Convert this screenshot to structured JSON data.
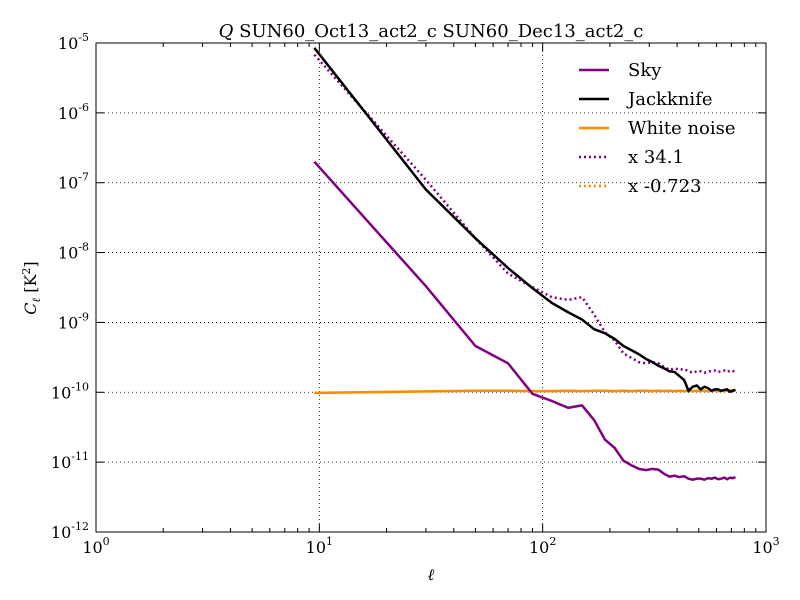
{
  "figure": {
    "title_math": "Q",
    "title_text": " SUN60_Oct13_act2_c SUN60_Dec13_act2_c",
    "xlabel": "ℓ",
    "ylabel_main": "C",
    "ylabel_sub": "ℓ",
    "ylabel_unit_open": " [K",
    "ylabel_unit_sup": "2",
    "ylabel_unit_close": "]"
  },
  "axes": {
    "x_ticks": [
      {
        "base": "10",
        "exp": "0",
        "value": 1
      },
      {
        "base": "10",
        "exp": "1",
        "value": 10
      },
      {
        "base": "10",
        "exp": "2",
        "value": 100
      },
      {
        "base": "10",
        "exp": "3",
        "value": 1000
      }
    ],
    "y_ticks": [
      {
        "base": "10",
        "exp": "-12",
        "value": 1e-12
      },
      {
        "base": "10",
        "exp": "-11",
        "value": 1e-11
      },
      {
        "base": "10",
        "exp": "-10",
        "value": 1e-10
      },
      {
        "base": "10",
        "exp": "-9",
        "value": 1e-09
      },
      {
        "base": "10",
        "exp": "-8",
        "value": 1e-08
      },
      {
        "base": "10",
        "exp": "-7",
        "value": 1e-07
      },
      {
        "base": "10",
        "exp": "-6",
        "value": 1e-06
      },
      {
        "base": "10",
        "exp": "-5",
        "value": 1e-05
      }
    ]
  },
  "legend": {
    "placement": "top-right",
    "entries": [
      {
        "label": "Sky",
        "color": "#800080",
        "style": "solid"
      },
      {
        "label": "Jackknife",
        "color": "#000000",
        "style": "solid"
      },
      {
        "label": "White noise",
        "color": "#ff8c00",
        "style": "solid"
      },
      {
        "label": "x 34.1",
        "color": "#800080",
        "style": "dotted"
      },
      {
        "label": "x -0.723",
        "color": "#ff8c00",
        "style": "dotted"
      }
    ]
  },
  "chart_data": {
    "type": "line",
    "xscale": "log",
    "yscale": "log",
    "xlim": [
      1,
      1000
    ],
    "ylim": [
      1e-12,
      1e-05
    ],
    "grid": true,
    "legend_placement": "top-right",
    "series": [
      {
        "name": "Sky",
        "color": "#800080",
        "style": "solid",
        "x": [
          9.5,
          30,
          50,
          70,
          90,
          110,
          130,
          150,
          170,
          190,
          210,
          230,
          250,
          270,
          290,
          310,
          330,
          350,
          370,
          390,
          410,
          430,
          450,
          470,
          490,
          510,
          530,
          550,
          570,
          590,
          610,
          630,
          650,
          670,
          690,
          710,
          730
        ],
        "y": [
          2e-07,
          3.3e-09,
          4.6e-10,
          2.6e-10,
          9.5e-11,
          7.5e-11,
          6e-11,
          6.5e-11,
          4e-11,
          2.1e-11,
          1.6e-11,
          1.05e-11,
          9e-12,
          8e-12,
          7.7e-12,
          8e-12,
          7.8e-12,
          6.8e-12,
          6.2e-12,
          6.4e-12,
          6.1e-12,
          6.3e-12,
          5.8e-12,
          5.6e-12,
          5.8e-12,
          5.8e-12,
          5.6e-12,
          5.9e-12,
          5.8e-12,
          6e-12,
          5.7e-12,
          5.8e-12,
          6e-12,
          5.7e-12,
          6e-12,
          5.9e-12,
          6.1e-12
        ]
      },
      {
        "name": "Jackknife",
        "color": "#000000",
        "style": "solid",
        "x": [
          9.5,
          30,
          50,
          70,
          90,
          110,
          130,
          150,
          170,
          190,
          210,
          230,
          250,
          270,
          290,
          310,
          330,
          350,
          370,
          390,
          410,
          430,
          450,
          470,
          490,
          510,
          530,
          550,
          570,
          590,
          610,
          630,
          650,
          670,
          690,
          710,
          730
        ],
        "y": [
          8.5e-06,
          8e-08,
          1.6e-08,
          6e-09,
          3.1e-09,
          1.9e-09,
          1.4e-09,
          1.1e-09,
          8e-10,
          7e-10,
          5.8e-10,
          4.6e-10,
          4e-10,
          3.5e-10,
          3e-10,
          2.7e-10,
          2.4e-10,
          2.2e-10,
          2e-10,
          1.95e-10,
          1.7e-10,
          1.5e-10,
          1.05e-10,
          1.2e-10,
          1.25e-10,
          1.1e-10,
          1.2e-10,
          1.15e-10,
          1.05e-10,
          1.1e-10,
          1.1e-10,
          1.05e-10,
          1.08e-10,
          1.1e-10,
          1.02e-10,
          1.05e-10,
          1.08e-10
        ]
      },
      {
        "name": "White noise",
        "color": "#ff8c00",
        "style": "solid",
        "x": [
          9.5,
          30,
          50,
          70,
          90,
          110,
          130,
          150,
          170,
          190,
          210,
          230,
          250,
          270,
          290,
          310,
          330,
          350,
          370,
          390,
          410,
          430,
          450,
          470,
          490,
          510,
          530,
          550,
          570,
          590,
          610,
          630,
          650,
          670,
          690,
          710,
          730
        ],
        "y": [
          9.8e-11,
          1.03e-10,
          1.05e-10,
          1.05e-10,
          1.04e-10,
          1.04e-10,
          1.05e-10,
          1.04e-10,
          1.05e-10,
          1.05e-10,
          1.04e-10,
          1.05e-10,
          1.04e-10,
          1.05e-10,
          1.05e-10,
          1.04e-10,
          1.05e-10,
          1.04e-10,
          1.05e-10,
          1.04e-10,
          1.05e-10,
          1.04e-10,
          1.05e-10,
          1.04e-10,
          1.05e-10,
          1.04e-10,
          1.05e-10,
          1.04e-10,
          1.05e-10,
          1.05e-10,
          1.04e-10,
          1.05e-10,
          1.04e-10,
          1.05e-10,
          1.06e-10,
          1.07e-10,
          1.08e-10
        ]
      },
      {
        "name": "x 34.1",
        "color": "#800080",
        "style": "dotted",
        "x": [
          9.5,
          30,
          50,
          70,
          90,
          110,
          130,
          150,
          170,
          190,
          210,
          230,
          250,
          270,
          290,
          310,
          330,
          350,
          370,
          390,
          410,
          430,
          450,
          470,
          490,
          510,
          530,
          550,
          570,
          590,
          610,
          630,
          650,
          670,
          690,
          710,
          730
        ],
        "y": [
          6.8e-06,
          1.1e-07,
          1.6e-08,
          5e-09,
          3.2e-09,
          2.3e-09,
          2.1e-09,
          2.3e-09,
          1.3e-09,
          7.2e-10,
          5.5e-10,
          3.6e-10,
          3.1e-10,
          2.7e-10,
          2.6e-10,
          2.7e-10,
          2.6e-10,
          2.3e-10,
          2.1e-10,
          2.2e-10,
          2.1e-10,
          2.15e-10,
          2e-10,
          1.9e-10,
          2e-10,
          2e-10,
          1.9e-10,
          2e-10,
          2e-10,
          2.05e-10,
          1.95e-10,
          2e-10,
          2.05e-10,
          1.95e-10,
          2.05e-10,
          2e-10,
          2.05e-10
        ]
      },
      {
        "name": "x -0.723",
        "color": "#ff8c00",
        "style": "dotted",
        "x": [
          9.5,
          30,
          50,
          70,
          90,
          110,
          130,
          150,
          170,
          190,
          210,
          230,
          250,
          270,
          290,
          310,
          330,
          350,
          370,
          390,
          410,
          430,
          450,
          470,
          490,
          510,
          530,
          550,
          570,
          590,
          610,
          630,
          650,
          670,
          690,
          710,
          730
        ],
        "y": [
          9.8e-11,
          1.03e-10,
          1.05e-10,
          1.05e-10,
          1.04e-10,
          1.04e-10,
          1.05e-10,
          1.04e-10,
          1.05e-10,
          1.05e-10,
          1.04e-10,
          1.05e-10,
          1.04e-10,
          1.05e-10,
          1.05e-10,
          1.04e-10,
          1.05e-10,
          1.04e-10,
          1.05e-10,
          1.04e-10,
          1.05e-10,
          1.04e-10,
          1.05e-10,
          1.04e-10,
          1.05e-10,
          1.04e-10,
          1.05e-10,
          1.04e-10,
          1.05e-10,
          1.05e-10,
          1.04e-10,
          1.05e-10,
          1.04e-10,
          1.05e-10,
          1.06e-10,
          1.07e-10,
          1.08e-10
        ]
      }
    ]
  }
}
